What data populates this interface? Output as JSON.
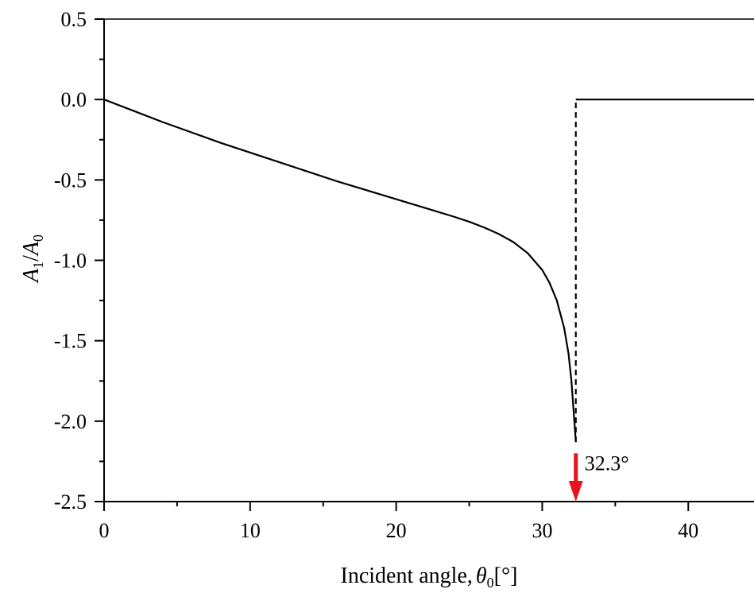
{
  "chart_data": {
    "type": "line",
    "title": "",
    "xlabel": "Incident angle,",
    "xlabel_symbol": "θ",
    "xlabel_subscript": "0",
    "xlabel_unit": "[°]",
    "ylabel_a": "A",
    "ylabel_a_sub": "1",
    "ylabel_slash": "/",
    "ylabel_b": "A",
    "ylabel_b_sub": "0",
    "xlim": [
      0,
      44.5
    ],
    "ylim": [
      -2.5,
      0.5
    ],
    "x_ticks": [
      0,
      10,
      20,
      30,
      40
    ],
    "x_tick_labels": [
      "0",
      "10",
      "20",
      "30",
      "40"
    ],
    "y_ticks": [
      0.5,
      0.0,
      -0.5,
      -1.0,
      -1.5,
      -2.0,
      -2.5
    ],
    "y_tick_labels": [
      "0.5",
      "0.0",
      "-0.5",
      "-1.0",
      "-1.5",
      "-2.0",
      "-2.5"
    ],
    "grid": false,
    "series": [
      {
        "line_style": "solid",
        "color": "#000000",
        "points": [
          [
            0,
            0.0
          ],
          [
            2,
            -0.07
          ],
          [
            4,
            -0.14
          ],
          [
            6,
            -0.205
          ],
          [
            8,
            -0.27
          ],
          [
            10,
            -0.33
          ],
          [
            12,
            -0.39
          ],
          [
            14,
            -0.45
          ],
          [
            16,
            -0.51
          ],
          [
            18,
            -0.565
          ],
          [
            20,
            -0.62
          ],
          [
            22,
            -0.675
          ],
          [
            24,
            -0.73
          ],
          [
            25,
            -0.76
          ],
          [
            26,
            -0.795
          ],
          [
            27,
            -0.835
          ],
          [
            28,
            -0.885
          ],
          [
            29,
            -0.955
          ],
          [
            30,
            -1.06
          ],
          [
            30.5,
            -1.14
          ],
          [
            31,
            -1.25
          ],
          [
            31.5,
            -1.42
          ],
          [
            31.8,
            -1.58
          ],
          [
            32.0,
            -1.75
          ],
          [
            32.2,
            -2.0
          ],
          [
            32.3,
            -2.13
          ]
        ]
      },
      {
        "line_style": "dashed",
        "color": "#000000",
        "points": [
          [
            32.3,
            -2.13
          ],
          [
            32.3,
            0.0
          ]
        ]
      },
      {
        "line_style": "solid",
        "color": "#000000",
        "points": [
          [
            32.3,
            0.0
          ],
          [
            44.5,
            0.0
          ]
        ]
      }
    ],
    "annotations": [
      {
        "text": "32.3°",
        "x": 32.3,
        "arrow_from_y": -2.2,
        "arrow_to_y": -2.5,
        "color": "#e8141c"
      }
    ]
  }
}
